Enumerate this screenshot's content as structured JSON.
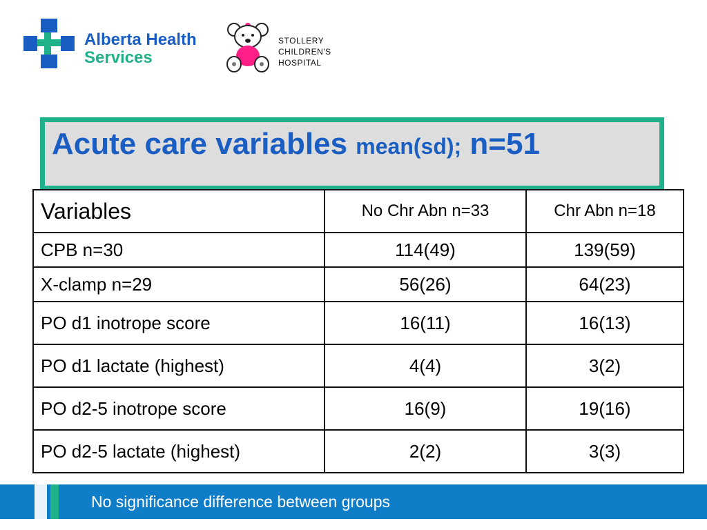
{
  "logos": {
    "ahs": {
      "line1": "Alberta Health",
      "line2": "Services",
      "text_color": "#1a5ec3",
      "accent": "#1fb28a"
    },
    "stollery": {
      "line1": "STOLLERY",
      "line2": "CHILDREN'S",
      "line3": "HOSPITAL",
      "bear_color": "#ff1f86"
    }
  },
  "title": {
    "main": "Acute care variables",
    "suffix_mid": "mean(sd);",
    "suffix_end": "n=51",
    "color": "#1a5ec3",
    "box_border": "#1fb28a",
    "box_fill": "#dddddd"
  },
  "table": {
    "headers": [
      "Variables",
      "No Chr Abn n=33",
      "Chr Abn n=18"
    ],
    "rows": [
      [
        "CPB n=30",
        "114(49)",
        "139(59)"
      ],
      [
        "X-clamp n=29",
        "56(26)",
        "64(23)"
      ],
      [
        "PO d1 inotrope score",
        "16(11)",
        "16(13)"
      ],
      [
        "PO d1 lactate (highest)",
        "4(4)",
        "3(2)"
      ],
      [
        "PO d2-5 inotrope score",
        "16(9)",
        "19(16)"
      ],
      [
        "PO d2-5 lactate (highest)",
        "2(2)",
        "3(3)"
      ]
    ]
  },
  "footer": {
    "text": "No significance difference between groups",
    "bar_color": "#0f7dc8"
  }
}
